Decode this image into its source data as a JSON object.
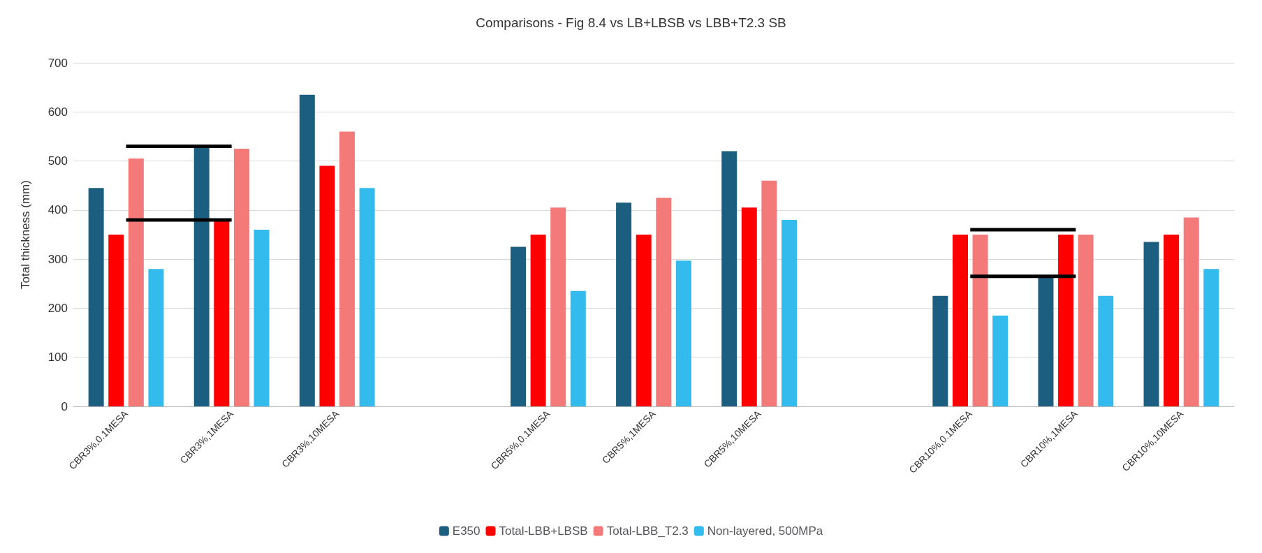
{
  "chart_data": {
    "type": "bar",
    "title": "Comparisons - Fig 8.4 vs LB+LBSB vs LBB+T2.3 SB",
    "ylabel": "Total thickness (mm)",
    "categories": [
      "CBR3%,0.1MESA",
      "CBR3%,1MESA",
      "CBR3%,10MESA",
      null,
      "CBR5%,0.1MESA",
      "CBR5%,1MESA",
      "CBR5%,10MESA",
      null,
      "CBR10%,0.1MESA",
      "CBR10%,1MESA",
      "CBR10%,10MESA"
    ],
    "series": [
      {
        "name": "E350",
        "color": "#1b5e80",
        "values": [
          445,
          530,
          635,
          null,
          325,
          415,
          520,
          null,
          225,
          265,
          335
        ]
      },
      {
        "name": "Total-LBB+LBSB",
        "color": "#ff0000",
        "values": [
          350,
          380,
          490,
          null,
          350,
          350,
          405,
          null,
          350,
          350,
          350
        ]
      },
      {
        "name": "Total-LBB_T2.3",
        "color": "#f47a7a",
        "values": [
          505,
          525,
          560,
          null,
          405,
          425,
          460,
          null,
          350,
          350,
          385
        ]
      },
      {
        "name": "Non-layered, 500MPa",
        "color": "#33bbee",
        "values": [
          280,
          360,
          445,
          null,
          235,
          297,
          380,
          null,
          185,
          225,
          280
        ]
      },
      {
        "type": "line",
        "color": "#000000",
        "values": [
          530,
          530,
          null,
          null,
          null,
          null,
          null,
          null,
          null,
          null,
          null
        ]
      },
      {
        "type": "line",
        "color": "#000000",
        "values": [
          380,
          380,
          null,
          null,
          null,
          null,
          null,
          null,
          null,
          null,
          null
        ]
      },
      {
        "type": "line",
        "color": "#000000",
        "values": [
          null,
          null,
          null,
          null,
          null,
          null,
          null,
          null,
          360,
          360,
          null
        ]
      },
      {
        "type": "line",
        "color": "#000000",
        "values": [
          null,
          null,
          null,
          null,
          null,
          null,
          null,
          null,
          265,
          265,
          null
        ]
      }
    ],
    "ylim": [
      0,
      700
    ],
    "yticks": [
      0,
      100,
      200,
      300,
      400,
      500,
      600,
      700
    ],
    "grid": "y",
    "legend": "bottom",
    "marker": "none"
  }
}
